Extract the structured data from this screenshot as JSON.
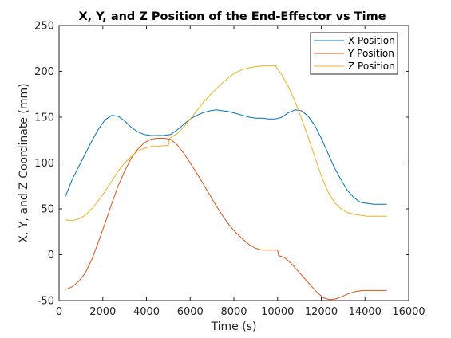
{
  "chart_data": {
    "type": "line",
    "title": "X, Y, and Z Position of the End-Effector vs Time",
    "xlabel": "Time (s)",
    "ylabel": "X, Y, and Z Coordinate (mm)",
    "xlim": [
      0,
      16000
    ],
    "ylim": [
      -50,
      250
    ],
    "xticks": [
      0,
      2000,
      4000,
      6000,
      8000,
      10000,
      12000,
      14000,
      16000
    ],
    "xtick_labels": [
      "0",
      "2000",
      "4000",
      "6000",
      "8000",
      "10000",
      "12000",
      "14000",
      "16000"
    ],
    "yticks": [
      -50,
      0,
      50,
      100,
      150,
      200,
      250
    ],
    "ytick_labels": [
      "-50",
      "0",
      "50",
      "100",
      "150",
      "200",
      "250"
    ],
    "grid": false,
    "legend_position": "top-right",
    "series": [
      {
        "name": "X Position",
        "color": "#0072bd",
        "points": [
          [
            300,
            64
          ],
          [
            600,
            82
          ],
          [
            900,
            96
          ],
          [
            1200,
            110
          ],
          [
            1500,
            124
          ],
          [
            1800,
            137
          ],
          [
            2100,
            147
          ],
          [
            2400,
            152
          ],
          [
            2700,
            151
          ],
          [
            3000,
            146
          ],
          [
            3300,
            139
          ],
          [
            3600,
            134
          ],
          [
            3900,
            131
          ],
          [
            4200,
            130
          ],
          [
            4500,
            130
          ],
          [
            4800,
            130
          ],
          [
            5100,
            131
          ],
          [
            5400,
            136
          ],
          [
            5700,
            142
          ],
          [
            6000,
            148
          ],
          [
            6300,
            152
          ],
          [
            6600,
            155
          ],
          [
            6900,
            157
          ],
          [
            7200,
            158
          ],
          [
            7500,
            157
          ],
          [
            7800,
            156
          ],
          [
            8100,
            154
          ],
          [
            8400,
            152
          ],
          [
            8700,
            150
          ],
          [
            9000,
            149
          ],
          [
            9300,
            149
          ],
          [
            9600,
            148
          ],
          [
            9900,
            148
          ],
          [
            10200,
            150
          ],
          [
            10500,
            155
          ],
          [
            10800,
            158
          ],
          [
            11100,
            157
          ],
          [
            11400,
            151
          ],
          [
            11700,
            141
          ],
          [
            12000,
            127
          ],
          [
            12300,
            111
          ],
          [
            12600,
            95
          ],
          [
            12900,
            82
          ],
          [
            13200,
            70
          ],
          [
            13500,
            62
          ],
          [
            13800,
            57
          ],
          [
            14100,
            56
          ],
          [
            14400,
            55
          ],
          [
            14700,
            55
          ],
          [
            15000,
            55
          ]
        ]
      },
      {
        "name": "Y Position",
        "color": "#d95319",
        "points": [
          [
            300,
            -38
          ],
          [
            600,
            -35
          ],
          [
            900,
            -29
          ],
          [
            1200,
            -20
          ],
          [
            1500,
            -5
          ],
          [
            1800,
            14
          ],
          [
            2100,
            34
          ],
          [
            2400,
            55
          ],
          [
            2700,
            75
          ],
          [
            3000,
            91
          ],
          [
            3300,
            105
          ],
          [
            3600,
            115
          ],
          [
            3900,
            122
          ],
          [
            4200,
            126
          ],
          [
            4500,
            127
          ],
          [
            4800,
            127
          ],
          [
            5100,
            126
          ],
          [
            5400,
            120
          ],
          [
            5700,
            111
          ],
          [
            6000,
            100
          ],
          [
            6300,
            89
          ],
          [
            6600,
            77
          ],
          [
            6900,
            65
          ],
          [
            7200,
            53
          ],
          [
            7500,
            42
          ],
          [
            7800,
            32
          ],
          [
            8100,
            24
          ],
          [
            8400,
            17
          ],
          [
            8700,
            11
          ],
          [
            9000,
            7
          ],
          [
            9300,
            5
          ],
          [
            9600,
            5
          ],
          [
            9900,
            5
          ],
          [
            10000,
            5
          ],
          [
            10050,
            -1
          ],
          [
            10300,
            -3
          ],
          [
            10600,
            -9
          ],
          [
            10900,
            -17
          ],
          [
            11200,
            -25
          ],
          [
            11500,
            -33
          ],
          [
            11800,
            -41
          ],
          [
            12100,
            -47
          ],
          [
            12400,
            -49
          ],
          [
            12700,
            -48
          ],
          [
            13000,
            -45
          ],
          [
            13300,
            -42
          ],
          [
            13600,
            -40
          ],
          [
            13900,
            -39
          ],
          [
            14200,
            -39
          ],
          [
            14500,
            -39
          ],
          [
            15000,
            -39
          ]
        ]
      },
      {
        "name": "Z Position",
        "color": "#edb120",
        "points": [
          [
            300,
            38
          ],
          [
            600,
            37
          ],
          [
            900,
            39
          ],
          [
            1200,
            43
          ],
          [
            1500,
            50
          ],
          [
            1800,
            59
          ],
          [
            2100,
            69
          ],
          [
            2400,
            80
          ],
          [
            2700,
            91
          ],
          [
            3000,
            100
          ],
          [
            3300,
            107
          ],
          [
            3600,
            113
          ],
          [
            3900,
            116
          ],
          [
            4200,
            118
          ],
          [
            4500,
            118
          ],
          [
            4800,
            119
          ],
          [
            5000,
            119
          ],
          [
            5050,
            127
          ],
          [
            5400,
            132
          ],
          [
            5700,
            139
          ],
          [
            6000,
            148
          ],
          [
            6300,
            157
          ],
          [
            6600,
            166
          ],
          [
            6900,
            174
          ],
          [
            7200,
            181
          ],
          [
            7500,
            188
          ],
          [
            7800,
            194
          ],
          [
            8100,
            199
          ],
          [
            8400,
            202
          ],
          [
            8700,
            204
          ],
          [
            9000,
            205
          ],
          [
            9300,
            206
          ],
          [
            9600,
            206
          ],
          [
            9900,
            206
          ],
          [
            10200,
            196
          ],
          [
            10500,
            183
          ],
          [
            10800,
            167
          ],
          [
            11100,
            148
          ],
          [
            11400,
            128
          ],
          [
            11700,
            107
          ],
          [
            12000,
            86
          ],
          [
            12300,
            69
          ],
          [
            12600,
            57
          ],
          [
            12900,
            50
          ],
          [
            13200,
            46
          ],
          [
            13500,
            44
          ],
          [
            13800,
            43
          ],
          [
            14100,
            42
          ],
          [
            14400,
            42
          ],
          [
            14700,
            42
          ],
          [
            15000,
            42
          ]
        ]
      }
    ]
  }
}
